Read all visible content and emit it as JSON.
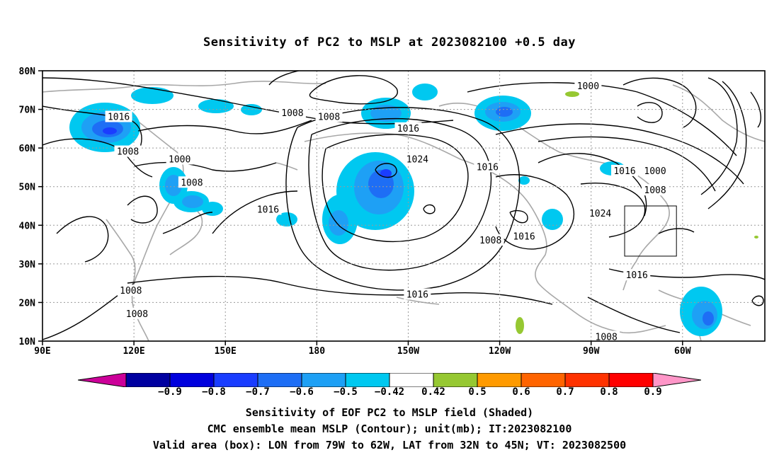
{
  "title": "Sensitivity of PC2 to MSLP at 2023082100 +0.5 day",
  "map": {
    "lat_labels": [
      "80N",
      "70N",
      "60N",
      "50N",
      "40N",
      "30N",
      "20N",
      "10N"
    ],
    "lon_labels": [
      "90E",
      "120E",
      "150E",
      "180",
      "150W",
      "120W",
      "90W",
      "60W"
    ],
    "valid_box": {
      "lon_from": "79W",
      "lon_to": "62W",
      "lat_from": "32N",
      "lat_to": "45N"
    },
    "contour_labels": [
      {
        "text": "1016",
        "lon": 115,
        "lat": 68
      },
      {
        "text": "1008",
        "lon": 118,
        "lat": 59
      },
      {
        "text": "1008",
        "lon": 172,
        "lat": 69
      },
      {
        "text": "1008",
        "lon": 184,
        "lat": 68
      },
      {
        "text": "1016",
        "lon": 210,
        "lat": 65
      },
      {
        "text": "1000",
        "lon": 269,
        "lat": 76
      },
      {
        "text": "1000",
        "lon": 135,
        "lat": 57
      },
      {
        "text": "1008",
        "lon": 139,
        "lat": 51
      },
      {
        "text": "1016",
        "lon": 164,
        "lat": 44
      },
      {
        "text": "1024",
        "lon": 213,
        "lat": 57
      },
      {
        "text": "1016",
        "lon": 236,
        "lat": 55
      },
      {
        "text": "1008",
        "lon": 237,
        "lat": 36
      },
      {
        "text": "1016",
        "lon": 248,
        "lat": 37
      },
      {
        "text": "1024",
        "lon": 273,
        "lat": 43
      },
      {
        "text": "1016",
        "lon": 281,
        "lat": 54
      },
      {
        "text": "1000",
        "lon": 291,
        "lat": 54
      },
      {
        "text": "1008",
        "lon": 291,
        "lat": 49
      },
      {
        "text": "1016",
        "lon": 285,
        "lat": 27
      },
      {
        "text": "1016",
        "lon": 213,
        "lat": 22
      },
      {
        "text": "1008",
        "lon": 119,
        "lat": 23
      },
      {
        "text": "1008",
        "lon": 121,
        "lat": 17
      },
      {
        "text": "1008",
        "lon": 275,
        "lat": 11
      }
    ]
  },
  "colorbar": {
    "labels": [
      "−0.9",
      "−0.8",
      "−0.7",
      "−0.6",
      "−0.5",
      "−0.42",
      "0.42",
      "0.5",
      "0.6",
      "0.7",
      "0.8",
      "0.9"
    ],
    "colors": [
      "#cc0099",
      "#0000a0",
      "#0000dd",
      "#1a3dff",
      "#1e6ef5",
      "#1ea0f5",
      "#00c8f0",
      "#ffffff",
      "#96c832",
      "#ff9a00",
      "#ff6400",
      "#ff3200",
      "#ff0000",
      "#ff96c8"
    ]
  },
  "captions": {
    "line1": "Sensitivity of EOF PC2 to MSLP field (Shaded)",
    "line2": "CMC ensemble mean MSLP (Contour); unit(mb); IT:2023082100",
    "line3": "Valid area (box): LON from 79W to 62W, LAT from 32N to 45N; VT: 2023082500"
  }
}
